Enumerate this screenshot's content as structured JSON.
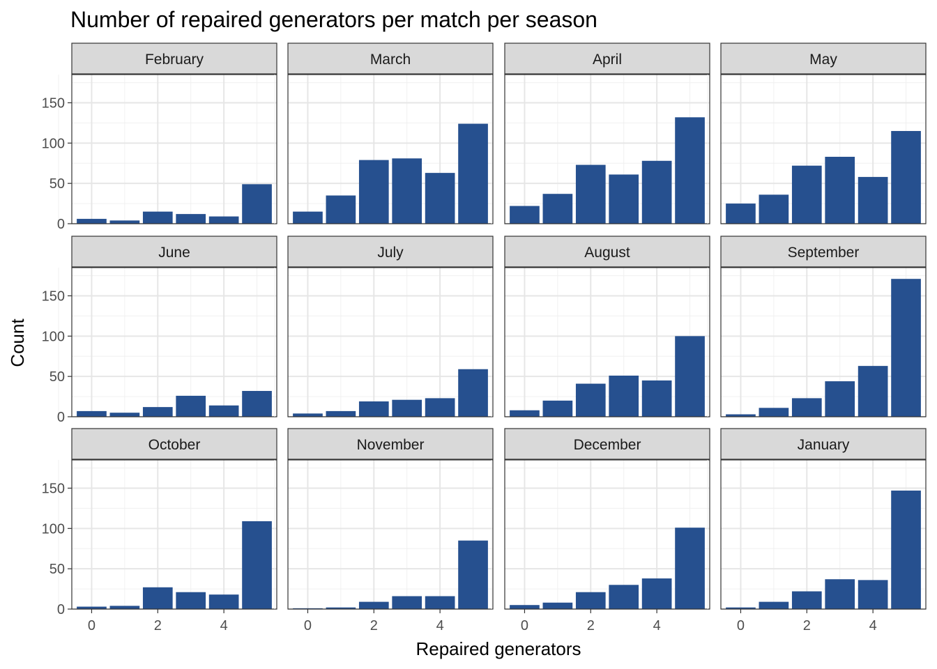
{
  "chart_data": {
    "type": "bar",
    "layout": "facet-grid",
    "facet_columns": 4,
    "title": "Number of repaired generators per match per season",
    "xlabel": "Repaired generators",
    "ylabel": "Count",
    "x": [
      0,
      1,
      2,
      3,
      4,
      5
    ],
    "xticks": [
      0,
      2,
      4
    ],
    "yticks": [
      0,
      50,
      100,
      150
    ],
    "ylim": [
      0,
      185
    ],
    "xlim": [
      -0.6,
      5.6
    ],
    "grid": true,
    "bar_color": "#26508F",
    "panels": [
      {
        "name": "February",
        "values": [
          6,
          4,
          15,
          12,
          9,
          49
        ]
      },
      {
        "name": "March",
        "values": [
          15,
          35,
          79,
          81,
          63,
          124
        ]
      },
      {
        "name": "April",
        "values": [
          22,
          37,
          73,
          61,
          78,
          132
        ]
      },
      {
        "name": "May",
        "values": [
          25,
          36,
          72,
          83,
          58,
          115
        ]
      },
      {
        "name": "June",
        "values": [
          7,
          5,
          12,
          26,
          14,
          32
        ]
      },
      {
        "name": "July",
        "values": [
          4,
          7,
          19,
          21,
          23,
          59
        ]
      },
      {
        "name": "August",
        "values": [
          8,
          20,
          41,
          51,
          45,
          100
        ]
      },
      {
        "name": "September",
        "values": [
          3,
          11,
          23,
          44,
          63,
          171
        ]
      },
      {
        "name": "October",
        "values": [
          3,
          4,
          27,
          21,
          18,
          109
        ]
      },
      {
        "name": "November",
        "values": [
          1,
          2,
          9,
          16,
          16,
          85
        ]
      },
      {
        "name": "December",
        "values": [
          5,
          8,
          21,
          30,
          38,
          101
        ]
      },
      {
        "name": "January",
        "values": [
          2,
          9,
          22,
          37,
          36,
          147
        ]
      }
    ]
  }
}
